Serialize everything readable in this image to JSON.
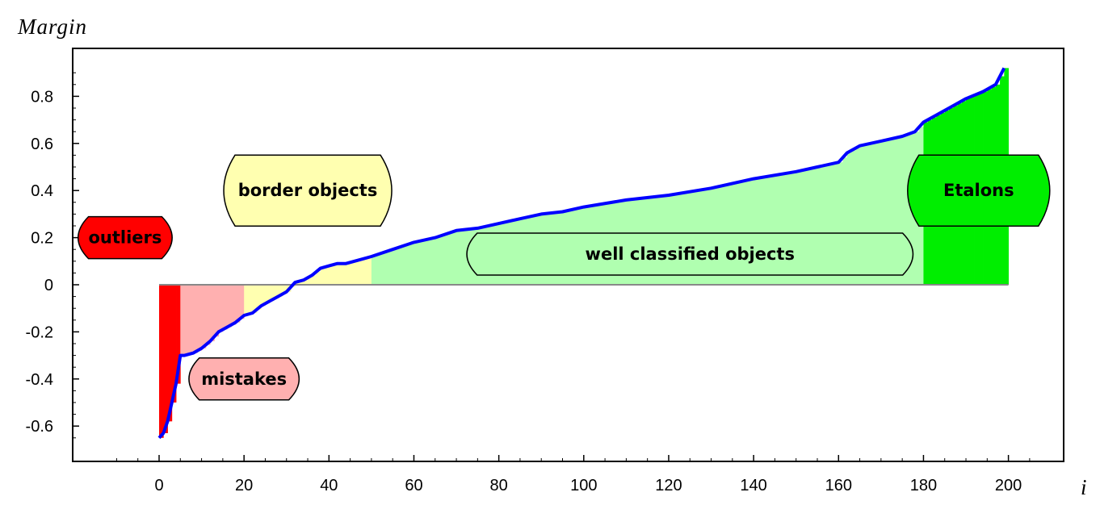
{
  "chart_data": {
    "type": "bar",
    "ylabel": "Margin",
    "xlabel": "i",
    "xlim": [
      -20,
      210
    ],
    "ylim": [
      -0.7,
      1.0
    ],
    "x_ticks": [
      0,
      20,
      40,
      60,
      80,
      100,
      120,
      140,
      160,
      180,
      200
    ],
    "y_ticks": [
      -0.6,
      -0.4,
      -0.2,
      0,
      0.2,
      0.4,
      0.6,
      0.8
    ],
    "y_tick_labels": [
      "-0.6",
      "-0.4",
      "-0.2",
      "0",
      "0.2",
      "0.4",
      "0.6",
      "0.8"
    ],
    "grid": false,
    "line_color": "#0000ff",
    "margin_curve": {
      "i": [
        0,
        1,
        2,
        3,
        4,
        5,
        6,
        8,
        10,
        12,
        14,
        16,
        18,
        20,
        22,
        24,
        26,
        28,
        30,
        32,
        34,
        36,
        38,
        40,
        42,
        44,
        46,
        48,
        50,
        55,
        60,
        65,
        70,
        75,
        80,
        85,
        90,
        95,
        100,
        110,
        120,
        130,
        140,
        150,
        155,
        160,
        162,
        165,
        170,
        175,
        178,
        180,
        183,
        186,
        190,
        194,
        197,
        199
      ],
      "margin": [
        -0.65,
        -0.63,
        -0.58,
        -0.5,
        -0.42,
        -0.3,
        -0.3,
        -0.29,
        -0.27,
        -0.24,
        -0.2,
        -0.18,
        -0.16,
        -0.13,
        -0.12,
        -0.09,
        -0.07,
        -0.05,
        -0.03,
        0.01,
        0.02,
        0.04,
        0.07,
        0.08,
        0.09,
        0.09,
        0.1,
        0.11,
        0.12,
        0.15,
        0.18,
        0.2,
        0.23,
        0.24,
        0.26,
        0.28,
        0.3,
        0.31,
        0.33,
        0.36,
        0.38,
        0.41,
        0.45,
        0.48,
        0.5,
        0.52,
        0.56,
        0.59,
        0.61,
        0.63,
        0.65,
        0.69,
        0.72,
        0.75,
        0.79,
        0.82,
        0.85,
        0.92
      ]
    },
    "regions": [
      {
        "name": "outliers",
        "from": 0,
        "to": 5,
        "color": "#ff0000"
      },
      {
        "name": "mistakes",
        "from": 5,
        "to": 20,
        "color": "#ffb0b0"
      },
      {
        "name": "border objects",
        "from": 20,
        "to": 50,
        "color": "#ffffb0"
      },
      {
        "name": "well classified objects",
        "from": 50,
        "to": 180,
        "color": "#b0ffb0"
      },
      {
        "name": "Etalons",
        "from": 180,
        "to": 199,
        "color": "#00ee00"
      }
    ],
    "annotations": [
      {
        "text": "outliers",
        "x": -8,
        "y": 0.2,
        "fill": "#ff0000",
        "border": "#000000"
      },
      {
        "text": "mistakes",
        "x": 20,
        "y": -0.4,
        "fill": "#ffb0b0",
        "border": "#000000"
      },
      {
        "text": "border objects",
        "x": 35,
        "y": 0.4,
        "fill": "#ffffb0",
        "border": "#000000"
      },
      {
        "text": "well classified objects",
        "x": 125,
        "y": 0.13,
        "fill": "#b0ffb0",
        "border": "#000000"
      },
      {
        "text": "Etalons",
        "x": 193,
        "y": 0.4,
        "fill": "#00ee00",
        "border": "#000000"
      }
    ]
  }
}
